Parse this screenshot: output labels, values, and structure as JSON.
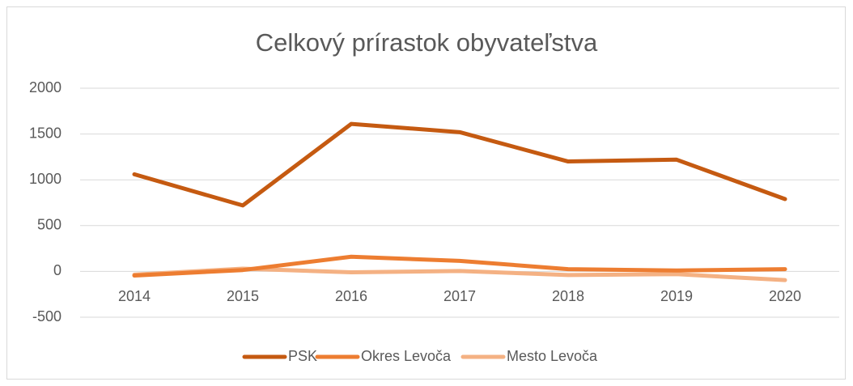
{
  "chart_data": {
    "type": "line",
    "title": "Celkový prírastok obyvateľstva",
    "categories": [
      "2014",
      "2015",
      "2016",
      "2017",
      "2018",
      "2019",
      "2020"
    ],
    "series": [
      {
        "name": "PSK",
        "color": "#c55a11",
        "values": [
          1060,
          720,
          1610,
          1520,
          1200,
          1220,
          790
        ]
      },
      {
        "name": "Okres Levoča",
        "color": "#ed7d31",
        "values": [
          -45,
          15,
          160,
          115,
          25,
          10,
          25
        ]
      },
      {
        "name": "Mesto Levoča",
        "color": "#f4b183",
        "values": [
          -35,
          30,
          -10,
          5,
          -40,
          -30,
          -95
        ]
      }
    ],
    "ylim": [
      -500,
      2000
    ],
    "yticks": [
      -500,
      0,
      500,
      1000,
      1500,
      2000
    ],
    "grid": true,
    "legend": "bottom"
  }
}
